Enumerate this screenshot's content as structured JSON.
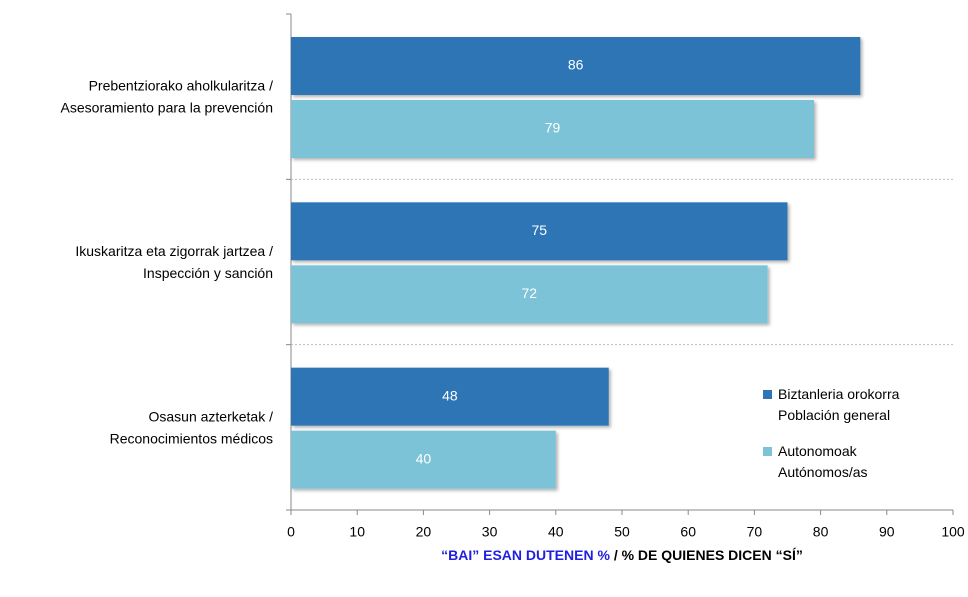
{
  "chart_data": {
    "type": "barh",
    "categories": [
      [
        "Prebentziorako aholkularitza /",
        "Asesoramiento para la prevención"
      ],
      [
        "Ikuskaritza eta zigorrak jartzea /",
        "Inspección y sanción"
      ],
      [
        "Osasun azterketak /",
        "Reconocimientos médicos"
      ]
    ],
    "series": [
      {
        "name": [
          "Biztanleria orokorra",
          "Población general"
        ],
        "color": "#2e75b6",
        "values": [
          86,
          75,
          48
        ]
      },
      {
        "name": [
          "Autonomoak",
          "Autónomos/as"
        ],
        "color": "#7cc3d8",
        "values": [
          79,
          72,
          40
        ]
      }
    ],
    "xlim": [
      0,
      100
    ],
    "xticks": [
      0,
      10,
      20,
      30,
      40,
      50,
      60,
      70,
      80,
      90,
      100
    ],
    "xlabel": [
      "“BAI” ESAN DUTENEN %",
      "/ % DE QUIENES DICEN “SÍ”"
    ],
    "legend": "lower right"
  }
}
